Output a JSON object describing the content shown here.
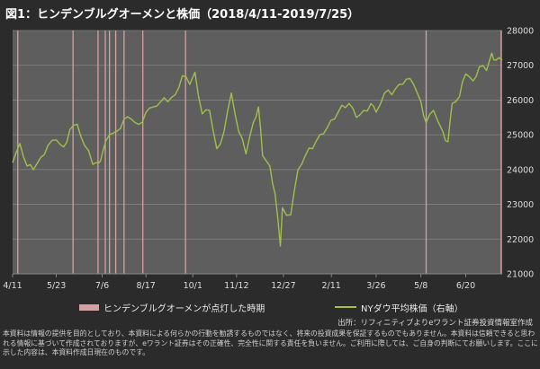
{
  "chart_data": {
    "type": "line",
    "title": "図1：ヒンデンブルグオーメンと株価（2018/4/11-2019/7/25）",
    "series": [
      {
        "name": "NYダウ平均株価（右軸）",
        "color": "#9fc04a",
        "points": [
          [
            "2018-04-11",
            24200
          ],
          [
            "2018-04-18",
            24750
          ],
          [
            "2018-04-25",
            24100
          ],
          [
            "2018-05-01",
            24000
          ],
          [
            "2018-05-08",
            24350
          ],
          [
            "2018-05-15",
            24700
          ],
          [
            "2018-05-23",
            24850
          ],
          [
            "2018-05-30",
            24650
          ],
          [
            "2018-06-05",
            25150
          ],
          [
            "2018-06-12",
            25300
          ],
          [
            "2018-06-19",
            24700
          ],
          [
            "2018-06-27",
            24150
          ],
          [
            "2018-07-03",
            24200
          ],
          [
            "2018-07-06",
            24450
          ],
          [
            "2018-07-13",
            25000
          ],
          [
            "2018-07-20",
            25100
          ],
          [
            "2018-07-27",
            25450
          ],
          [
            "2018-08-03",
            25450
          ],
          [
            "2018-08-10",
            25300
          ],
          [
            "2018-08-17",
            25650
          ],
          [
            "2018-08-24",
            25800
          ],
          [
            "2018-08-31",
            25950
          ],
          [
            "2018-09-07",
            25950
          ],
          [
            "2018-09-14",
            26150
          ],
          [
            "2018-09-21",
            26700
          ],
          [
            "2018-09-28",
            26450
          ],
          [
            "2018-10-03",
            26800
          ],
          [
            "2018-10-10",
            25600
          ],
          [
            "2018-10-17",
            25700
          ],
          [
            "2018-10-24",
            24600
          ],
          [
            "2018-10-31",
            25100
          ],
          [
            "2018-11-07",
            26200
          ],
          [
            "2018-11-14",
            25100
          ],
          [
            "2018-11-21",
            24450
          ],
          [
            "2018-11-28",
            25350
          ],
          [
            "2018-12-03",
            25800
          ],
          [
            "2018-12-07",
            24400
          ],
          [
            "2018-12-14",
            24100
          ],
          [
            "2018-12-19",
            23300
          ],
          [
            "2018-12-24",
            21800
          ],
          [
            "2018-12-26",
            22900
          ],
          [
            "2019-01-03",
            22700
          ],
          [
            "2019-01-10",
            24000
          ],
          [
            "2019-01-17",
            24400
          ],
          [
            "2019-01-24",
            24600
          ],
          [
            "2019-01-31",
            25000
          ],
          [
            "2019-02-07",
            25200
          ],
          [
            "2019-02-14",
            25450
          ],
          [
            "2019-02-21",
            25850
          ],
          [
            "2019-02-28",
            25900
          ],
          [
            "2019-03-07",
            25500
          ],
          [
            "2019-03-14",
            25700
          ],
          [
            "2019-03-21",
            25900
          ],
          [
            "2019-03-26",
            25650
          ],
          [
            "2019-04-03",
            26200
          ],
          [
            "2019-04-10",
            26150
          ],
          [
            "2019-04-17",
            26450
          ],
          [
            "2019-04-24",
            26600
          ],
          [
            "2019-05-01",
            26450
          ],
          [
            "2019-05-08",
            25950
          ],
          [
            "2019-05-13",
            25350
          ],
          [
            "2019-05-20",
            25700
          ],
          [
            "2019-05-29",
            25100
          ],
          [
            "2019-06-03",
            24800
          ],
          [
            "2019-06-07",
            25900
          ],
          [
            "2019-06-14",
            26100
          ],
          [
            "2019-06-20",
            26750
          ],
          [
            "2019-06-27",
            26550
          ],
          [
            "2019-07-03",
            26950
          ],
          [
            "2019-07-10",
            26850
          ],
          [
            "2019-07-15",
            27350
          ],
          [
            "2019-07-19",
            27150
          ],
          [
            "2019-07-25",
            27150
          ]
        ]
      }
    ],
    "events": {
      "name": "ヒンデンブルグオーメンが点灯した時期",
      "color": "#d4a0a0",
      "dates": [
        "2018-04-16",
        "2018-06-08",
        "2018-07-02",
        "2018-07-09",
        "2018-07-13",
        "2018-07-19",
        "2018-07-27",
        "2018-08-14",
        "2018-09-24",
        "2019-05-13",
        "2019-07-24"
      ]
    },
    "x_ticks": [
      {
        "date": "2018-04-11",
        "label": "4/11"
      },
      {
        "date": "2018-05-23",
        "label": "5/23"
      },
      {
        "date": "2018-07-06",
        "label": "7/6"
      },
      {
        "date": "2018-08-17",
        "label": "8/17"
      },
      {
        "date": "2018-10-01",
        "label": "10/1"
      },
      {
        "date": "2018-11-12",
        "label": "11/12"
      },
      {
        "date": "2018-12-27",
        "label": "12/27"
      },
      {
        "date": "2019-02-11",
        "label": "2/11"
      },
      {
        "date": "2019-03-26",
        "label": "3/26"
      },
      {
        "date": "2019-05-08",
        "label": "5/8"
      },
      {
        "date": "2019-06-20",
        "label": "6/20"
      }
    ],
    "y_axis": {
      "side": "right",
      "min": 21000,
      "max": 28000,
      "step": 1000
    },
    "xlim": [
      "2018-04-11",
      "2019-07-25"
    ],
    "grid": true,
    "legend_placement": "bottom"
  },
  "legend": {
    "omen_label": "ヒンデンブルグオーメンが点灯した時期",
    "dow_label": "NYダウ平均株価（右軸）"
  },
  "source": "出所：リフィニティブよりeワラント証券投資情報室作成",
  "disclaimer": "本資料は情報の提供を目的としており、本資料による何らかの行動を勧誘するものではなく、将来の投資成果を保証するものでもありません。本資料は信頼できると思われる情報に基づいて作成されておりますが、eワラント証券はその正確性、完全性に関する責任を負いません。ご利用に際しては、ご自身の判断にてお願いします。ここに示した内容は、本資料作成日現在のものです。"
}
